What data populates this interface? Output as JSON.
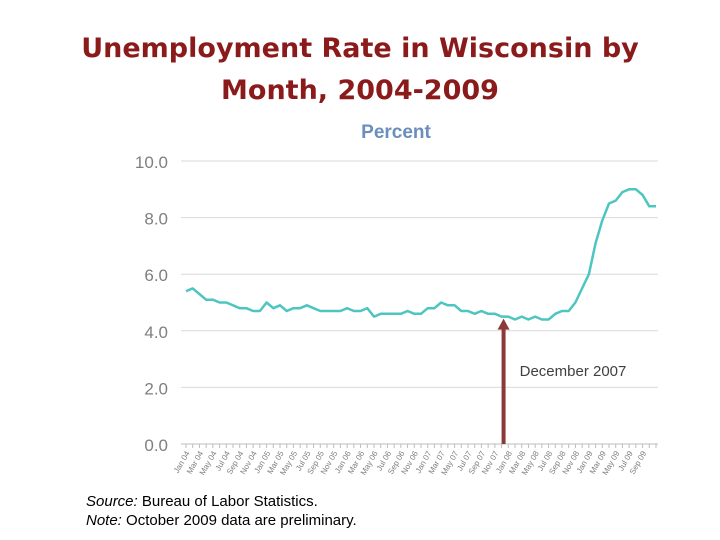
{
  "page": {
    "title_line1": "Unemployment Rate in Wisconsin by",
    "title_line2": "Month, 2004-2009",
    "source_label": "Source:",
    "source_text": " Bureau of Labor Statistics.",
    "note_label": "Note:",
    "note_text": " October 2009 data are preliminary."
  },
  "chart_data": {
    "type": "line",
    "ylabel": "Percent",
    "ylim": [
      0,
      10
    ],
    "yticks": [
      "0.0",
      "2.0",
      "4.0",
      "6.0",
      "8.0",
      "10.0"
    ],
    "grid": "horizontal",
    "line_color": "#4ec5c1",
    "annotation": {
      "label": "December 2007",
      "at_index": 47,
      "arrow_color": "#8b3a3a"
    },
    "xtick_labels": [
      "Jan 04",
      "Mar 04",
      "May 04",
      "Jul 04",
      "Sep 04",
      "Nov 04",
      "Jan 05",
      "Mar 05",
      "May 05",
      "Jul 05",
      "Sep 05",
      "Nov 05",
      "Jan 06",
      "Mar 06",
      "May 06",
      "Jul 06",
      "Sep 06",
      "Nov 06",
      "Jan 07",
      "Mar 07",
      "May 07",
      "Jul 07",
      "Sep 07",
      "Nov 07",
      "Jan 08",
      "Mar 08",
      "May 08",
      "Jul 08",
      "Sep 08",
      "Nov 08",
      "Jan 09",
      "Mar 09",
      "May 09",
      "Jul 09",
      "Sep 09"
    ],
    "values": [
      5.4,
      5.5,
      5.3,
      5.1,
      5.1,
      5.0,
      5.0,
      4.9,
      4.8,
      4.8,
      4.7,
      4.7,
      5.0,
      4.8,
      4.9,
      4.7,
      4.8,
      4.8,
      4.9,
      4.8,
      4.7,
      4.7,
      4.7,
      4.7,
      4.8,
      4.7,
      4.7,
      4.8,
      4.5,
      4.6,
      4.6,
      4.6,
      4.6,
      4.7,
      4.6,
      4.6,
      4.8,
      4.8,
      5.0,
      4.9,
      4.9,
      4.7,
      4.7,
      4.6,
      4.7,
      4.6,
      4.6,
      4.5,
      4.5,
      4.4,
      4.5,
      4.4,
      4.5,
      4.4,
      4.4,
      4.6,
      4.7,
      4.7,
      5.0,
      5.5,
      6.0,
      7.1,
      7.9,
      8.5,
      8.6,
      8.9,
      9.0,
      9.0,
      8.8,
      8.4,
      8.4
    ]
  }
}
